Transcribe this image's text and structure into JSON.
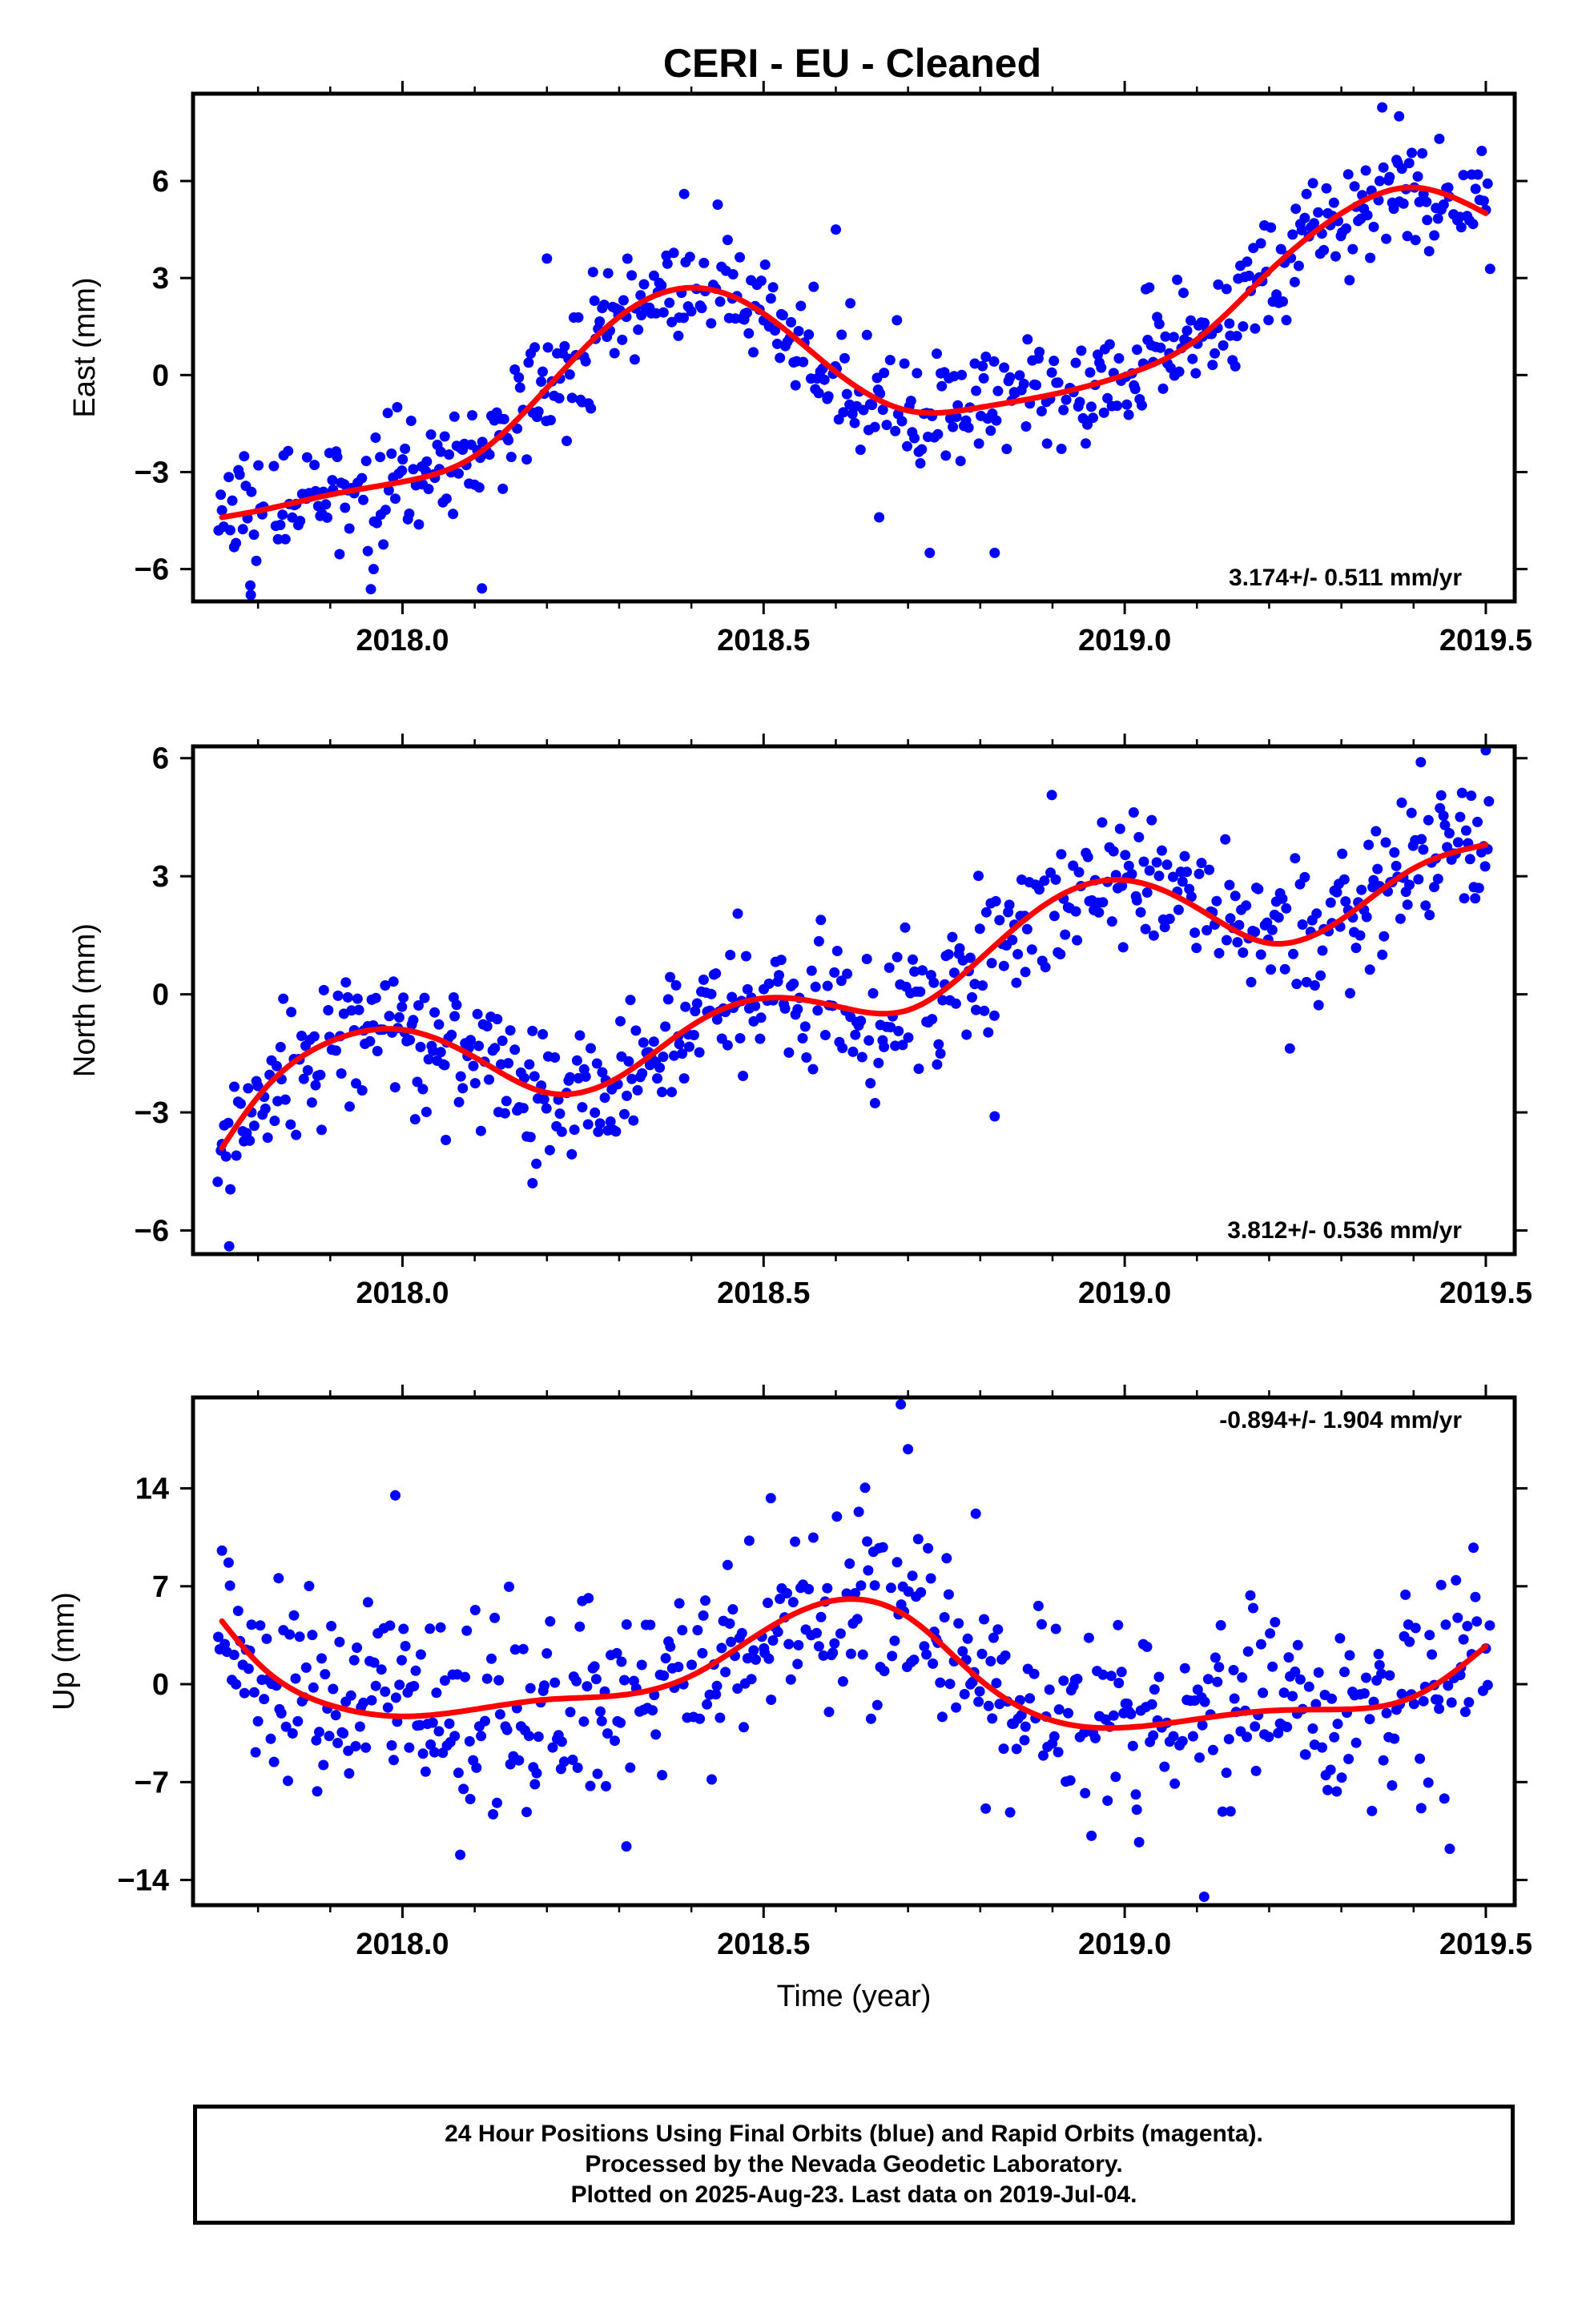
{
  "title": "CERI  - EU - Cleaned",
  "x_axis": {
    "label": "Time (year)",
    "range": [
      2017.71,
      2019.54
    ],
    "ticks": [
      2018.0,
      2018.5,
      2019.0,
      2019.5
    ],
    "tick_labels": [
      "2018.0",
      "2018.5",
      "2019.0",
      "2019.5"
    ],
    "minor_ticks": [
      2017.8,
      2017.9,
      2018.1,
      2018.2,
      2018.3,
      2018.4,
      2018.6,
      2018.7,
      2018.8,
      2018.9,
      2019.1,
      2019.2,
      2019.3,
      2019.4
    ]
  },
  "footer": {
    "line1": "24 Hour Positions Using Final Orbits (blue) and Rapid Orbits (magenta).",
    "line2": "Processed by the Nevada Geodetic Laboratory.",
    "line3": "Plotted on 2025-Aug-23. Last data on 2019-Jul-04."
  },
  "colors": {
    "points": "#0000ff",
    "model": "#ff0000",
    "axes": "#000000"
  },
  "chart_data": [
    {
      "type": "scatter",
      "component": "east",
      "ylabel": "East (mm)",
      "ylim": [
        -7.0,
        8.7
      ],
      "yticks": [
        -6,
        -3,
        0,
        3,
        6
      ],
      "ytick_labels": [
        "−6",
        "−3",
        "0",
        "3",
        "6"
      ],
      "rate": "3.174+/- 0.511 mm/yr",
      "rate_position": "bottom-right",
      "noise": 0.9,
      "model_x": [
        2017.75,
        2017.8,
        2017.9,
        2018.0,
        2018.1,
        2018.2,
        2018.3,
        2018.4,
        2018.5,
        2018.6,
        2018.7,
        2018.8,
        2018.9,
        2019.0,
        2019.1,
        2019.2,
        2019.3,
        2019.4,
        2019.5
      ],
      "model_y": [
        -4.4,
        -4.2,
        -3.7,
        -3.3,
        -2.5,
        -0.4,
        1.8,
        2.7,
        1.9,
        0.1,
        -1.1,
        -1.0,
        -0.6,
        0.0,
        1.1,
        3.2,
        5.0,
        5.8,
        5.0
      ],
      "outliers": [
        [
          2017.79,
          -6.8
        ],
        [
          2018.11,
          -6.6
        ],
        [
          2018.66,
          -4.4
        ],
        [
          2018.73,
          -5.5
        ],
        [
          2018.82,
          -5.5
        ],
        [
          2018.39,
          5.6
        ],
        [
          2019.38,
          8.0
        ],
        [
          2018.2,
          3.6
        ],
        [
          2018.6,
          4.5
        ],
        [
          2017.96,
          -6.0
        ]
      ]
    },
    {
      "type": "scatter",
      "component": "north",
      "ylabel": "North (mm)",
      "ylim": [
        -6.6,
        6.3
      ],
      "yticks": [
        -6,
        -3,
        0,
        3,
        6
      ],
      "ytick_labels": [
        "−6",
        "−3",
        "0",
        "3",
        "6"
      ],
      "rate": "3.812+/- 0.536 mm/yr",
      "rate_position": "bottom-right",
      "noise": 0.85,
      "model_x": [
        2017.75,
        2017.8,
        2017.9,
        2018.0,
        2018.1,
        2018.2,
        2018.3,
        2018.4,
        2018.5,
        2018.6,
        2018.7,
        2018.8,
        2018.9,
        2019.0,
        2019.1,
        2019.2,
        2019.3,
        2019.4,
        2019.5
      ],
      "model_y": [
        -3.9,
        -2.6,
        -1.2,
        -0.9,
        -1.6,
        -2.5,
        -2.1,
        -0.8,
        -0.1,
        -0.3,
        -0.4,
        0.9,
        2.4,
        2.9,
        2.2,
        1.3,
        1.9,
        3.2,
        3.8
      ],
      "outliers": [
        [
          2017.76,
          -6.4
        ],
        [
          2018.18,
          -4.8
        ],
        [
          2019.5,
          6.2
        ],
        [
          2018.82,
          -3.1
        ],
        [
          2018.06,
          -3.7
        ],
        [
          2019.41,
          5.9
        ]
      ]
    },
    {
      "type": "scatter",
      "component": "up",
      "ylabel": "Up (mm)",
      "ylim": [
        -15.8,
        20.5
      ],
      "yticks": [
        -14,
        -7,
        0,
        7,
        14
      ],
      "ytick_labels": [
        "−14",
        "−7",
        "0",
        "7",
        "14"
      ],
      "rate": "-0.894+/- 1.904 mm/yr",
      "rate_position": "top-right",
      "noise": 3.6,
      "model_x": [
        2017.75,
        2017.8,
        2017.9,
        2018.0,
        2018.1,
        2018.2,
        2018.3,
        2018.4,
        2018.5,
        2018.6,
        2018.7,
        2018.8,
        2018.9,
        2019.0,
        2019.1,
        2019.2,
        2019.3,
        2019.4,
        2019.5
      ],
      "model_y": [
        4.5,
        1.5,
        -1.5,
        -2.3,
        -1.8,
        -1.1,
        -0.8,
        0.6,
        3.8,
        6.0,
        4.8,
        0.3,
        -2.6,
        -3.1,
        -2.5,
        -1.9,
        -1.8,
        -0.9,
        2.7
      ],
      "outliers": [
        [
          2018.69,
          20.0
        ],
        [
          2018.7,
          16.8
        ],
        [
          2018.31,
          -11.6
        ],
        [
          2019.11,
          -15.2
        ],
        [
          2018.08,
          -12.2
        ],
        [
          2017.99,
          13.5
        ],
        [
          2018.51,
          13.3
        ],
        [
          2019.02,
          -11.3
        ]
      ]
    }
  ]
}
